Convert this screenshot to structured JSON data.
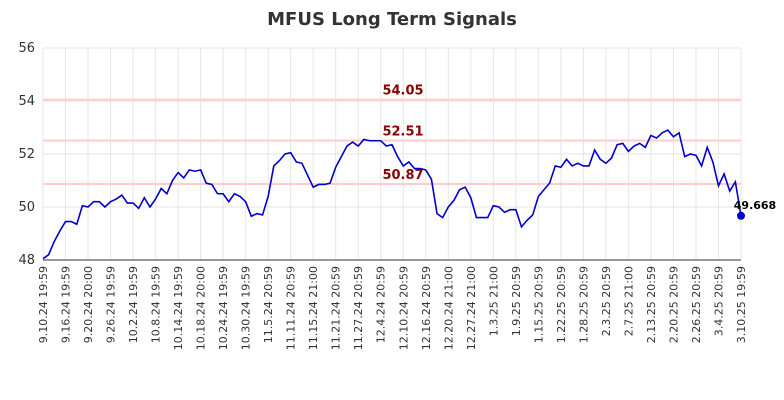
{
  "chart_data": {
    "type": "line",
    "title": "MFUS Long Term Signals",
    "categories": [
      "9.10.24 19:59",
      null,
      null,
      null,
      "9.16.24 19:59",
      null,
      null,
      null,
      "9.20.24 20:00",
      null,
      null,
      null,
      "9.26.24 19:59",
      null,
      null,
      null,
      "10.2.24 19:59",
      null,
      null,
      null,
      "10.8.24 19:59",
      null,
      null,
      null,
      "10.14.24 19:59",
      null,
      null,
      null,
      "10.18.24 20:00",
      null,
      null,
      null,
      "10.24.24 19:59",
      null,
      null,
      null,
      "10.30.24 19:59",
      null,
      null,
      null,
      "11.5.24 20:59",
      null,
      null,
      null,
      "11.11.24 20:59",
      null,
      null,
      null,
      "11.15.24 21:00",
      null,
      null,
      null,
      "11.21.24 20:59",
      null,
      null,
      null,
      "11.27.24 20:59",
      null,
      null,
      null,
      "12.4.24 20:59",
      null,
      null,
      null,
      "12.10.24 20:59",
      null,
      null,
      null,
      "12.16.24 20:59",
      null,
      null,
      null,
      "12.20.24 21:00",
      null,
      null,
      null,
      "12.27.24 21:00",
      null,
      null,
      null,
      "1.3.25 21:00",
      null,
      null,
      null,
      "1.9.25 20:59",
      null,
      null,
      null,
      "1.15.25 20:59",
      null,
      null,
      null,
      "1.22.25 20:59",
      null,
      null,
      null,
      "1.28.25 20:59",
      null,
      null,
      null,
      "2.3.25 20:59",
      null,
      null,
      null,
      "2.7.25 21:00",
      null,
      null,
      null,
      "2.13.25 20:59",
      null,
      null,
      null,
      "2.20.25 20:59",
      null,
      null,
      null,
      "2.26.25 20:59",
      null,
      null,
      null,
      "3.4.25 20:59",
      null,
      null,
      null,
      "3.10.25 19:59"
    ],
    "series": [
      {
        "color": "#0000cc",
        "values": [
          48.05,
          48.2,
          48.7,
          49.1,
          49.45,
          49.45,
          49.35,
          50.05,
          50.0,
          50.2,
          50.2,
          50.0,
          50.2,
          50.3,
          50.45,
          50.15,
          50.15,
          49.95,
          50.35,
          50.0,
          50.3,
          50.7,
          50.5,
          51.0,
          51.3,
          51.1,
          51.4,
          51.35,
          51.4,
          50.9,
          50.85,
          50.5,
          50.5,
          50.2,
          50.5,
          50.4,
          50.2,
          49.65,
          49.75,
          49.7,
          50.4,
          51.55,
          51.75,
          52.0,
          52.05,
          51.7,
          51.65,
          51.2,
          50.75,
          50.85,
          50.85,
          50.9,
          51.5,
          51.9,
          52.3,
          52.45,
          52.3,
          52.55,
          52.5,
          52.5,
          52.5,
          52.3,
          52.35,
          51.9,
          51.55,
          51.7,
          51.45,
          51.45,
          51.4,
          51.05,
          49.75,
          49.6,
          50.0,
          50.25,
          50.65,
          50.75,
          50.35,
          49.6,
          49.6,
          49.6,
          50.05,
          50.0,
          49.8,
          49.9,
          49.9,
          49.25,
          49.5,
          49.7,
          50.4,
          50.65,
          50.9,
          51.55,
          51.5,
          51.8,
          51.55,
          51.65,
          51.55,
          51.55,
          52.15,
          51.8,
          51.65,
          51.85,
          52.35,
          52.4,
          52.1,
          52.3,
          52.4,
          52.25,
          52.7,
          52.6,
          52.8,
          52.9,
          52.65,
          52.8,
          51.9,
          52.0,
          51.95,
          51.55,
          52.25,
          51.7,
          50.8,
          51.25,
          50.6,
          50.95,
          49.668
        ]
      }
    ],
    "hlines": [
      54.05,
      52.51,
      50.87
    ],
    "hline_color": "#ffcccc",
    "hline_label_color": "#8b0000",
    "last_value_label": "49.668",
    "ylim": [
      48,
      56
    ],
    "yticks": [
      48,
      50,
      52,
      54,
      56
    ],
    "grid": true
  }
}
